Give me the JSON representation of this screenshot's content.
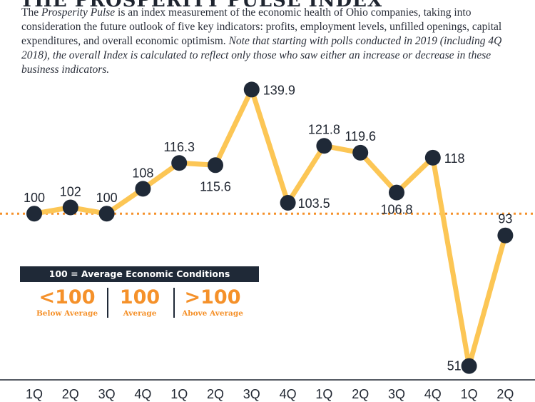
{
  "header": {
    "title": "THE PROSPERITY PULSE INDEX",
    "intro_pre": "The ",
    "intro_em": "Prosperity Pulse",
    "intro_mid": " is an index measurement of the economic health of Ohio companies, taking into consideration the future outlook of five key indicators: profits, employment levels, unfilled openings, capital expenditures, and overall economic optimism. ",
    "intro_note": "Note that starting with polls conducted in 2019 (including 4Q 2018), the overall Index is calculated to reflect only those who saw either an increase or decrease in these business indicators."
  },
  "legend": {
    "heading": "100 = Average Economic Conditions",
    "items": [
      {
        "big": "<100",
        "small": "Below Average"
      },
      {
        "big": "100",
        "small": "Average"
      },
      {
        "big": ">100",
        "small": "Above Average"
      }
    ]
  },
  "colors": {
    "line": "#fcc655",
    "marker": "#1f2937",
    "reference": "#f5912a",
    "text": "#1f2530"
  },
  "chart_data": {
    "type": "line",
    "categories": [
      "1Q",
      "2Q",
      "3Q",
      "4Q",
      "1Q",
      "2Q",
      "3Q",
      "4Q",
      "1Q",
      "2Q",
      "3Q",
      "4Q",
      "1Q",
      "2Q"
    ],
    "values": [
      100,
      102,
      100,
      108,
      116.3,
      115.6,
      139.9,
      103.5,
      121.8,
      119.6,
      106.8,
      118,
      51,
      93
    ],
    "value_labels": [
      "100",
      "102",
      "100",
      "108",
      "116.3",
      "115.6",
      "139.9",
      "103.5",
      "121.8",
      "119.6",
      "106.8",
      "118",
      "51",
      "93"
    ],
    "reference_line": 100,
    "ylim": [
      50,
      140
    ],
    "grid": false,
    "title": "",
    "xlabel": "",
    "ylabel": ""
  }
}
